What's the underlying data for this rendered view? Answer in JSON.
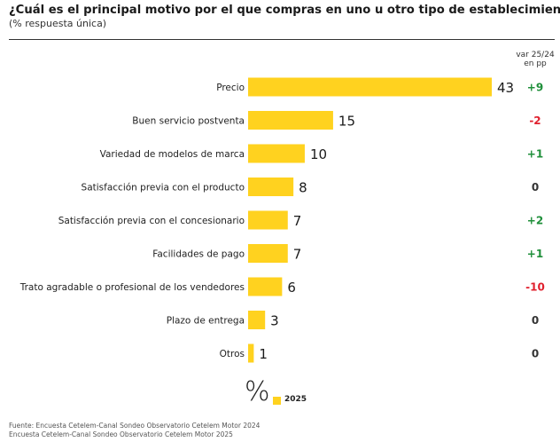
{
  "title": "¿Cuál es el principal motivo por el que compras en uno u otro tipo de establecimiento?",
  "subtitle": "(% respuesta única)",
  "var_header": {
    "line1": "var 25/24",
    "line2": "en pp"
  },
  "legend": {
    "symbol": "%",
    "series_label": "2025"
  },
  "source": {
    "line1": "Fuente: Encuesta Cetelem-Canal Sondeo Observatorio Cetelem Motor 2024",
    "line2": "Encuesta Cetelem-Canal Sondeo Observatorio Cetelem Motor 2025"
  },
  "colors": {
    "bar": "#ffd21f",
    "positive": "#1f8f3a",
    "negative": "#e0202e",
    "neutral": "#333333"
  },
  "chart_data": {
    "type": "bar",
    "orientation": "horizontal",
    "categories": [
      "Precio",
      "Buen servicio postventa",
      "Variedad de modelos de marca",
      "Satisfacción previa con el producto",
      "Satisfacción previa con el concesionario",
      "Facilidades de pago",
      "Trato agradable o profesional de los vendedores",
      "Plazo de entrega",
      "Otros"
    ],
    "series": [
      {
        "name": "2025",
        "values": [
          43,
          15,
          10,
          8,
          7,
          7,
          6,
          3,
          1
        ]
      }
    ],
    "variation_pp": [
      "+9",
      "-2",
      "+1",
      "0",
      "+2",
      "+1",
      "-10",
      "0",
      "0"
    ],
    "xlim": [
      0,
      43
    ],
    "grid": false,
    "legend_position": "bottom"
  }
}
